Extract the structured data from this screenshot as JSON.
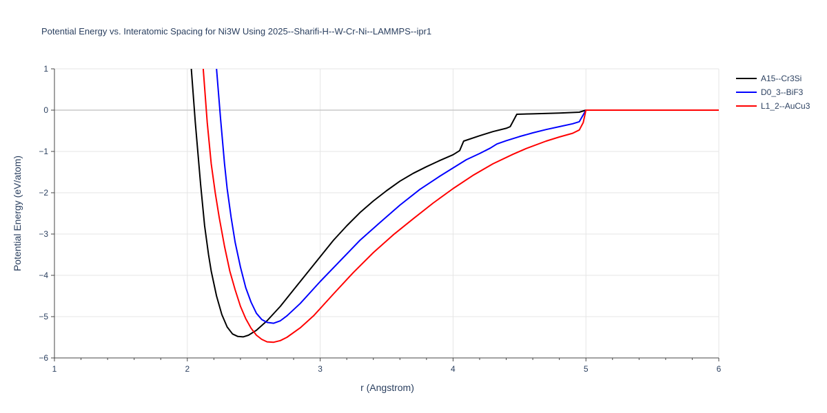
{
  "chart_data": {
    "type": "line",
    "title": "Potential Energy vs. Interatomic Spacing for Ni3W Using 2025--Sharifi-H--W-Cr-Ni--LAMMPS--ipr1",
    "xlabel": "r (Angstrom)",
    "ylabel": "Potential Energy (eV/atom)",
    "xlim": [
      1,
      6
    ],
    "ylim": [
      -6,
      1
    ],
    "xticks": [
      1,
      2,
      3,
      4,
      5,
      6
    ],
    "yticks": [
      1,
      0,
      -1,
      -2,
      -3,
      -4,
      -5,
      -6
    ],
    "xtick_labels": [
      "1",
      "2",
      "3",
      "4",
      "5",
      "6"
    ],
    "ytick_labels": [
      "1",
      "0",
      "−1",
      "−2",
      "−3",
      "−4",
      "−5",
      "−6"
    ],
    "grid": true,
    "legend_position": "top-right outside",
    "series": [
      {
        "name": "A15--Cr3Si",
        "color": "#000000",
        "points": [
          [
            2.03,
            1.0
          ],
          [
            2.06,
            -0.3
          ],
          [
            2.1,
            -1.8
          ],
          [
            2.13,
            -2.8
          ],
          [
            2.16,
            -3.5
          ],
          [
            2.18,
            -3.9
          ],
          [
            2.22,
            -4.5
          ],
          [
            2.26,
            -4.95
          ],
          [
            2.3,
            -5.25
          ],
          [
            2.34,
            -5.42
          ],
          [
            2.38,
            -5.48
          ],
          [
            2.42,
            -5.49
          ],
          [
            2.46,
            -5.45
          ],
          [
            2.52,
            -5.33
          ],
          [
            2.6,
            -5.1
          ],
          [
            2.7,
            -4.75
          ],
          [
            2.8,
            -4.35
          ],
          [
            2.9,
            -3.95
          ],
          [
            3.0,
            -3.55
          ],
          [
            3.1,
            -3.15
          ],
          [
            3.2,
            -2.8
          ],
          [
            3.3,
            -2.48
          ],
          [
            3.4,
            -2.2
          ],
          [
            3.5,
            -1.95
          ],
          [
            3.6,
            -1.72
          ],
          [
            3.7,
            -1.53
          ],
          [
            3.8,
            -1.37
          ],
          [
            3.9,
            -1.22
          ],
          [
            4.0,
            -1.08
          ],
          [
            4.05,
            -0.98
          ],
          [
            4.08,
            -0.75
          ],
          [
            4.2,
            -0.62
          ],
          [
            4.3,
            -0.52
          ],
          [
            4.4,
            -0.44
          ],
          [
            4.43,
            -0.4
          ],
          [
            4.48,
            -0.1
          ],
          [
            4.6,
            -0.09
          ],
          [
            4.8,
            -0.07
          ],
          [
            4.95,
            -0.05
          ],
          [
            5.0,
            0.0
          ],
          [
            5.5,
            0.0
          ],
          [
            6.0,
            0.0
          ]
        ]
      },
      {
        "name": "D0_3--BiF3",
        "color": "#0000ff",
        "points": [
          [
            2.22,
            1.0
          ],
          [
            2.25,
            -0.2
          ],
          [
            2.28,
            -1.3
          ],
          [
            2.3,
            -1.9
          ],
          [
            2.33,
            -2.6
          ],
          [
            2.36,
            -3.2
          ],
          [
            2.4,
            -3.8
          ],
          [
            2.44,
            -4.3
          ],
          [
            2.48,
            -4.65
          ],
          [
            2.52,
            -4.92
          ],
          [
            2.56,
            -5.07
          ],
          [
            2.6,
            -5.14
          ],
          [
            2.65,
            -5.16
          ],
          [
            2.7,
            -5.1
          ],
          [
            2.75,
            -4.98
          ],
          [
            2.85,
            -4.68
          ],
          [
            3.0,
            -4.15
          ],
          [
            3.15,
            -3.65
          ],
          [
            3.3,
            -3.15
          ],
          [
            3.45,
            -2.72
          ],
          [
            3.6,
            -2.3
          ],
          [
            3.75,
            -1.92
          ],
          [
            3.9,
            -1.6
          ],
          [
            4.0,
            -1.4
          ],
          [
            4.1,
            -1.2
          ],
          [
            4.2,
            -1.05
          ],
          [
            4.28,
            -0.92
          ],
          [
            4.33,
            -0.82
          ],
          [
            4.4,
            -0.74
          ],
          [
            4.5,
            -0.64
          ],
          [
            4.6,
            -0.55
          ],
          [
            4.7,
            -0.47
          ],
          [
            4.8,
            -0.4
          ],
          [
            4.9,
            -0.33
          ],
          [
            4.95,
            -0.28
          ],
          [
            5.0,
            0.0
          ],
          [
            5.5,
            0.0
          ],
          [
            6.0,
            0.0
          ]
        ]
      },
      {
        "name": "L1_2--AuCu3",
        "color": "#ff0000",
        "points": [
          [
            2.12,
            1.0
          ],
          [
            2.15,
            -0.3
          ],
          [
            2.18,
            -1.3
          ],
          [
            2.21,
            -2.0
          ],
          [
            2.24,
            -2.6
          ],
          [
            2.28,
            -3.3
          ],
          [
            2.32,
            -3.9
          ],
          [
            2.36,
            -4.35
          ],
          [
            2.4,
            -4.75
          ],
          [
            2.44,
            -5.05
          ],
          [
            2.48,
            -5.28
          ],
          [
            2.52,
            -5.45
          ],
          [
            2.56,
            -5.55
          ],
          [
            2.6,
            -5.61
          ],
          [
            2.65,
            -5.62
          ],
          [
            2.7,
            -5.58
          ],
          [
            2.75,
            -5.5
          ],
          [
            2.85,
            -5.27
          ],
          [
            2.95,
            -4.98
          ],
          [
            3.1,
            -4.45
          ],
          [
            3.25,
            -3.93
          ],
          [
            3.4,
            -3.45
          ],
          [
            3.55,
            -3.02
          ],
          [
            3.7,
            -2.63
          ],
          [
            3.85,
            -2.25
          ],
          [
            4.0,
            -1.9
          ],
          [
            4.15,
            -1.58
          ],
          [
            4.3,
            -1.3
          ],
          [
            4.45,
            -1.07
          ],
          [
            4.55,
            -0.93
          ],
          [
            4.7,
            -0.75
          ],
          [
            4.8,
            -0.65
          ],
          [
            4.9,
            -0.56
          ],
          [
            4.95,
            -0.48
          ],
          [
            4.98,
            -0.3
          ],
          [
            5.0,
            0.0
          ],
          [
            5.5,
            0.0
          ],
          [
            6.0,
            0.0
          ]
        ]
      }
    ]
  }
}
